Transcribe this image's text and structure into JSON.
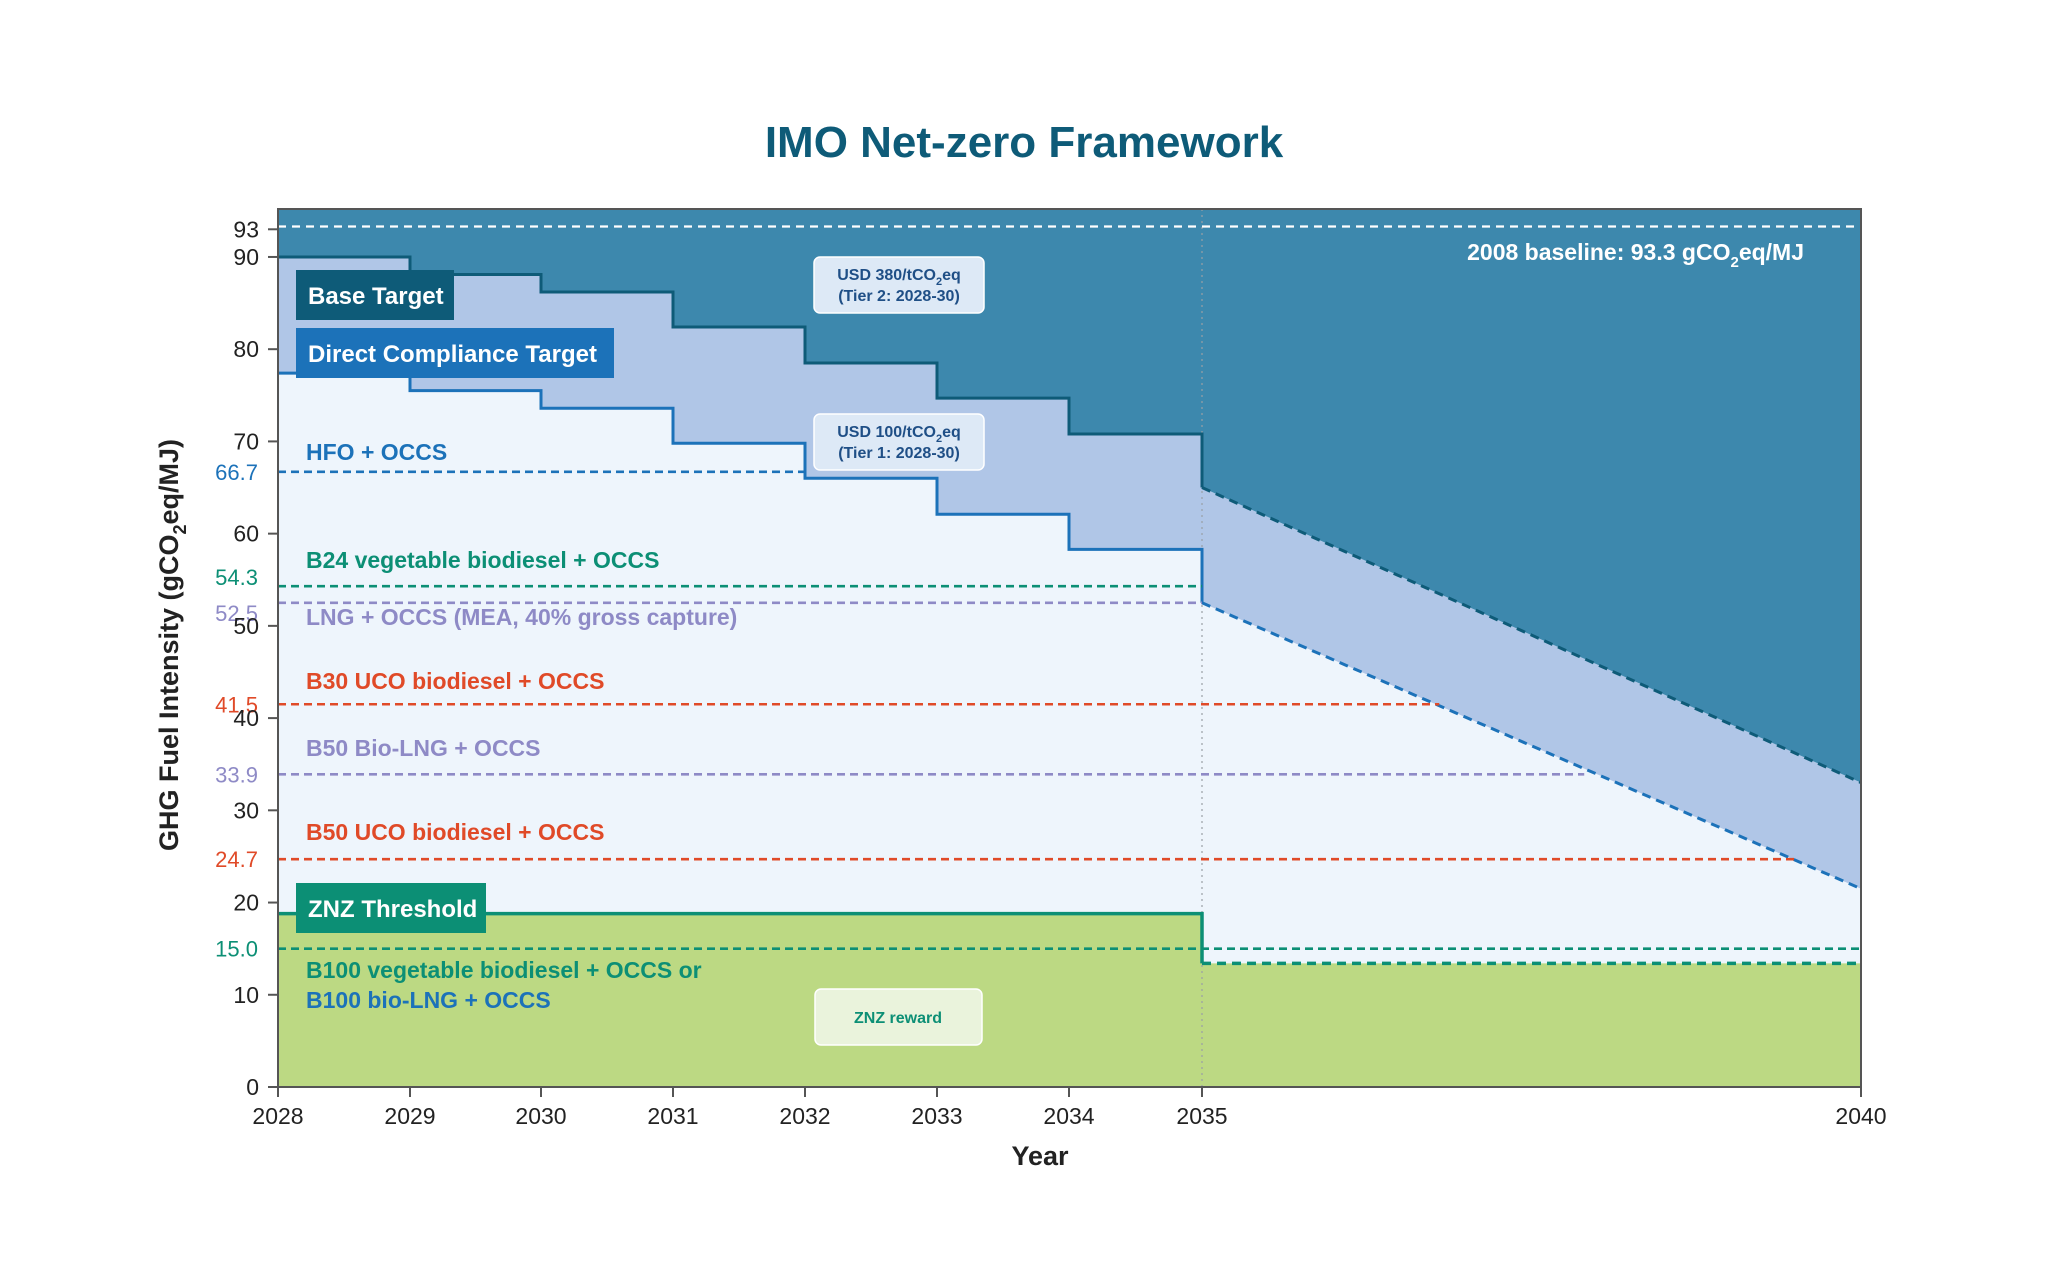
{
  "title": "IMO Net-zero Framework",
  "colors": {
    "title": "#0e5b78",
    "base_area": "#3d88ad",
    "base_area_dark": "#0e5b78",
    "band": "#b0c6e7",
    "light": "#eef5fc",
    "green": "#bcd983",
    "direct": "#1c72b9",
    "teal": "#0c8f75",
    "purple": "#8e8ac6",
    "red": "#e04a28",
    "axis": "#555555"
  },
  "chart_data": {
    "type": "area",
    "title": "IMO Net-zero Framework",
    "xlabel": "Year",
    "ylabel": "GHG Fuel Intensity (gCO2eq/MJ)",
    "xlim": [
      2028,
      2040
    ],
    "ylim": [
      0,
      93
    ],
    "x_ticks": [
      "2028",
      "2029",
      "2030",
      "2031",
      "2032",
      "2033",
      "2034",
      "2035",
      "2040"
    ],
    "y_ticks": [
      "0",
      "10",
      "20",
      "30",
      "40",
      "50",
      "60",
      "70",
      "80",
      "90",
      "93"
    ],
    "baseline": {
      "value": 93.3,
      "label_prefix": "2008 baseline: 93.3 gCO",
      "label_suffix": "eq/MJ"
    },
    "series": [
      {
        "name": "Base Target",
        "step_x": [
          2028,
          2029,
          2030,
          2031,
          2032,
          2033,
          2034,
          2035
        ],
        "step_y": [
          90.0,
          88.1,
          86.2,
          82.4,
          78.5,
          74.7,
          70.8
        ],
        "projection": [
          [
            2035,
            65.0
          ],
          [
            2040,
            33.0
          ]
        ]
      },
      {
        "name": "Direct Compliance Target",
        "step_x": [
          2028,
          2029,
          2030,
          2031,
          2032,
          2033,
          2034,
          2035
        ],
        "step_y": [
          77.4,
          75.5,
          73.6,
          69.8,
          66.0,
          62.1,
          58.3
        ],
        "projection": [
          [
            2035,
            52.5
          ],
          [
            2040,
            21.5
          ]
        ]
      },
      {
        "name": "ZNZ Threshold",
        "step_x": [
          2028,
          2035,
          2040
        ],
        "step_y": [
          18.8,
          13.4
        ]
      }
    ],
    "tags": {
      "base": "Base Target",
      "direct": "Direct Compliance Target",
      "znz": "ZNZ Threshold"
    },
    "fuel_lines": [
      {
        "label": "HFO + OCCS",
        "value": 66.7,
        "value_label": "66.7",
        "color": "#1c72b9",
        "end_x": 2032
      },
      {
        "label": "B24 vegetable biodiesel + OCCS",
        "value": 54.3,
        "value_label": "54.3",
        "color": "#0c8f75",
        "end_x": 2035
      },
      {
        "label": "LNG + OCCS (MEA, 40% gross capture)",
        "value": 52.5,
        "value_label": "52.5",
        "color": "#8e8ac6",
        "end_x": 2035
      },
      {
        "label": "B30 UCO biodiesel + OCCS",
        "value": 41.5,
        "value_label": "41.5",
        "color": "#e04a28",
        "end_x": 2036.8
      },
      {
        "label": "B50 Bio-LNG + OCCS",
        "value": 33.9,
        "value_label": "33.9",
        "color": "#8e8ac6",
        "end_x": 2037.9
      },
      {
        "label": "B50 UCO biodiesel + OCCS",
        "value": 24.7,
        "value_label": "24.7",
        "color": "#e04a28",
        "end_x": 2039.5
      },
      {
        "label": "B100 vegetable biodiesel + OCCS or",
        "label2": "B100 bio-LNG + OCCS",
        "value": 15.0,
        "value_label": "15.0",
        "color": "#0c8f75",
        "color2": "#1c72b9",
        "end_x": 2040
      }
    ],
    "price_boxes": [
      {
        "line1_prefix": "USD 380/tCO",
        "line1_suffix": "eq",
        "line2": "(Tier 2: 2028-30)"
      },
      {
        "line1_prefix": "USD 100/tCO",
        "line1_suffix": "eq",
        "line2": "(Tier 1: 2028-30)"
      }
    ],
    "reward": "ZNZ reward"
  }
}
